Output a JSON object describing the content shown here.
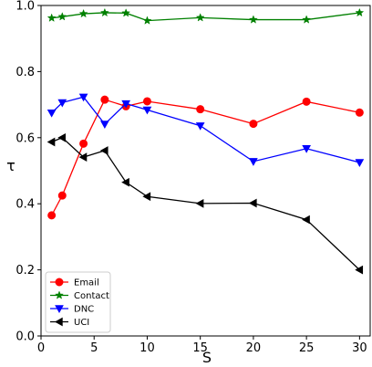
{
  "chart_data": {
    "type": "line",
    "xlabel": "S",
    "ylabel": "τ",
    "xlim": [
      0,
      31
    ],
    "ylim": [
      0.0,
      1.0
    ],
    "xticks": [
      0,
      5,
      10,
      15,
      20,
      25,
      30
    ],
    "yticks": [
      0.0,
      0.2,
      0.4,
      0.6,
      0.8,
      1.0
    ],
    "ytick_labels": [
      "0.0",
      "0.2",
      "0.4",
      "0.6",
      "0.8",
      "1.0"
    ],
    "grid": false,
    "legend_position": "lower-left",
    "series": [
      {
        "name": "Email",
        "color": "#ff0000",
        "marker": "circle",
        "x": [
          1,
          2,
          4,
          6,
          8,
          10,
          15,
          20,
          25,
          30
        ],
        "y": [
          0.365,
          0.425,
          0.582,
          0.715,
          0.695,
          0.71,
          0.686,
          0.642,
          0.709,
          0.676
        ]
      },
      {
        "name": "Contact",
        "color": "#008000",
        "marker": "star",
        "x": [
          1,
          2,
          4,
          6,
          8,
          10,
          15,
          20,
          25,
          30
        ],
        "y": [
          0.962,
          0.966,
          0.975,
          0.978,
          0.977,
          0.954,
          0.963,
          0.957,
          0.957,
          0.978
        ]
      },
      {
        "name": "DNC",
        "color": "#0000ff",
        "marker": "triangle-down",
        "x": [
          1,
          2,
          4,
          6,
          8,
          10,
          15,
          20,
          25,
          30
        ],
        "y": [
          0.675,
          0.706,
          0.723,
          0.641,
          0.703,
          0.684,
          0.636,
          0.528,
          0.567,
          0.525
        ]
      },
      {
        "name": "UCI",
        "color": "#000000",
        "marker": "triangle-left",
        "x": [
          1,
          2,
          4,
          6,
          8,
          10,
          15,
          20,
          25,
          30
        ],
        "y": [
          0.587,
          0.6,
          0.541,
          0.561,
          0.465,
          0.422,
          0.401,
          0.402,
          0.352,
          0.2
        ]
      }
    ]
  }
}
